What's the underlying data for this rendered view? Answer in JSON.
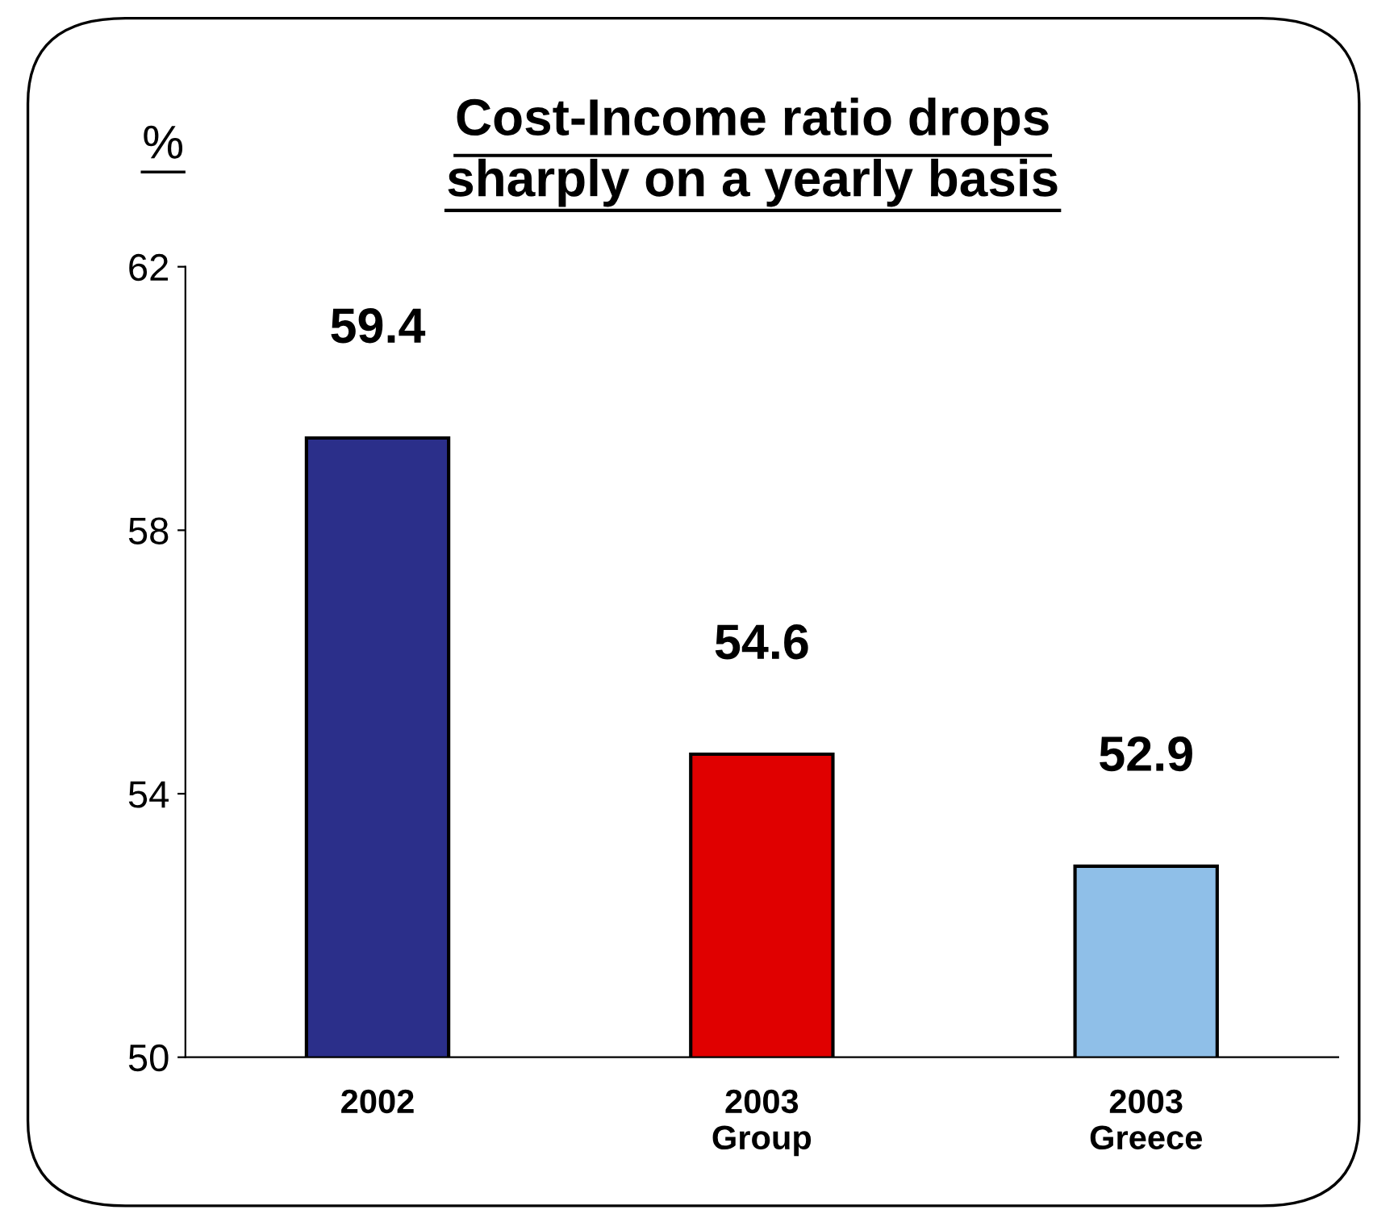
{
  "chart_data": {
    "type": "bar",
    "title": "Cost-Income ratio drops\nsharply on a yearly basis",
    "ylabel": "%",
    "categories": [
      "2002",
      "2003\nGroup",
      "2003\nGreece"
    ],
    "values": [
      59.4,
      54.6,
      52.9
    ],
    "colors": [
      "#2b2f8a",
      "#e00000",
      "#8fbfe8"
    ],
    "ylim": [
      50,
      62
    ],
    "yticks": [
      50,
      54,
      58,
      62
    ],
    "data_labels": true,
    "grid": false,
    "legend": false
  }
}
